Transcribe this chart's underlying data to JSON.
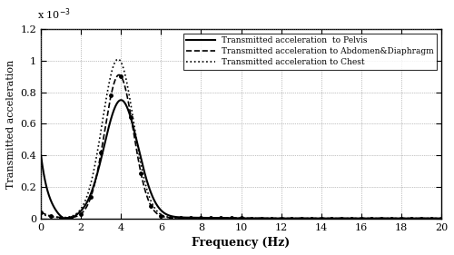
{
  "title": "",
  "xlabel": "Frequency (Hz)",
  "ylabel": "Transmitted acceleration",
  "xlim": [
    0,
    20
  ],
  "ylim": [
    0,
    0.0012
  ],
  "ytick_values": [
    0,
    0.0002,
    0.0004,
    0.0006,
    0.0008,
    0.001,
    0.0012
  ],
  "ytick_labels": [
    "0",
    "0.2",
    "0.4",
    "0.6",
    "0.8",
    "1",
    "1.2"
  ],
  "xtick_values": [
    0,
    2,
    4,
    6,
    8,
    10,
    12,
    14,
    16,
    18,
    20
  ],
  "legend": [
    "Transmitted acceleration  to Pelvis",
    "Transmitted acceleration to Abdomen&Diaphragm",
    "Transmitted acceleration to Chest"
  ],
  "exponent_label": "x 10-3",
  "background_color": "#ffffff"
}
